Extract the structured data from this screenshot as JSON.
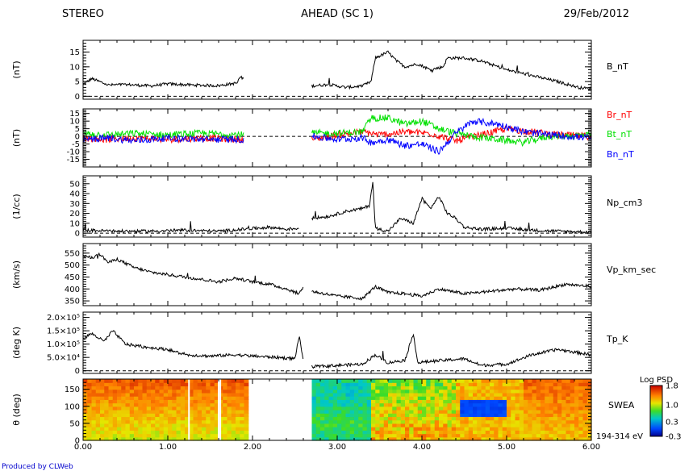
{
  "header": {
    "left": "STEREO",
    "center": "AHEAD (SC 1)",
    "right": "29/Feb/2012"
  },
  "footer": "Produced by CLWeb",
  "x_axis": {
    "range": [
      0,
      6
    ],
    "ticks": [
      "0.00",
      "1.00",
      "2.00",
      "3.00",
      "4.00",
      "5.00",
      "6.00"
    ]
  },
  "chart_data": [
    {
      "type": "line",
      "ylabel": "(nT)",
      "ylim": [
        -1,
        19
      ],
      "yticks": [
        0,
        5,
        10,
        15
      ],
      "ytick_labels": [
        "0",
        "5",
        "10",
        "15"
      ],
      "zero_line": true,
      "data_gap": [
        1.9,
        2.7
      ],
      "series": [
        {
          "name": "B_nT",
          "color": "#000000",
          "x": [
            0.0,
            0.1,
            0.3,
            0.5,
            0.8,
            1.0,
            1.3,
            1.6,
            1.82,
            1.85,
            1.9,
            2.7,
            2.9,
            3.1,
            3.3,
            3.4,
            3.45,
            3.6,
            3.7,
            3.8,
            3.95,
            4.1,
            4.25,
            4.3,
            4.5,
            4.7,
            5.0,
            5.3,
            5.6,
            5.85,
            6.0
          ],
          "y": [
            4,
            6,
            3.8,
            4,
            3.5,
            4.2,
            3.8,
            3.6,
            4.5,
            6.5,
            6,
            3.5,
            4,
            3,
            3.5,
            5,
            13,
            15,
            12,
            10,
            11,
            9,
            10,
            13,
            13,
            12,
            9,
            7,
            5,
            3,
            2.5
          ]
        }
      ],
      "label_colors": [
        "#000000"
      ]
    },
    {
      "type": "line",
      "ylabel": "(nT)",
      "ylim": [
        -20,
        18
      ],
      "yticks": [
        -15,
        -10,
        -5,
        0,
        5,
        10,
        15
      ],
      "ytick_labels": [
        "-15",
        "-10",
        "-5",
        "0",
        "5",
        "10",
        "15"
      ],
      "zero_line": true,
      "data_gap": [
        1.9,
        2.7
      ],
      "series": [
        {
          "name": "Br_nT",
          "color": "#ff0000",
          "x": [
            0.0,
            0.3,
            0.6,
            1.0,
            1.4,
            1.9,
            2.7,
            3.0,
            3.3,
            3.5,
            3.8,
            4.1,
            4.4,
            4.7,
            5.0,
            5.3,
            5.6,
            6.0
          ],
          "y": [
            -1,
            -2,
            -1,
            -2,
            -1,
            -2,
            -2,
            1,
            3,
            1,
            3,
            2,
            -3,
            1,
            5,
            3,
            1,
            0
          ]
        },
        {
          "name": "Bt_nT",
          "color": "#00e000",
          "x": [
            0.0,
            0.3,
            0.6,
            1.0,
            1.4,
            1.9,
            2.7,
            3.0,
            3.3,
            3.4,
            3.6,
            3.8,
            4.0,
            4.2,
            4.4,
            4.6,
            4.9,
            5.2,
            5.5,
            6.0
          ],
          "y": [
            2,
            1,
            2,
            1,
            2,
            1,
            2,
            2,
            3,
            12,
            12,
            8,
            10,
            5,
            2,
            0,
            -2,
            -4,
            0,
            1
          ]
        },
        {
          "name": "Bn_nT",
          "color": "#0000ff",
          "x": [
            0.0,
            0.3,
            0.6,
            1.0,
            1.4,
            1.9,
            2.7,
            3.0,
            3.3,
            3.4,
            3.6,
            3.8,
            4.0,
            4.2,
            4.4,
            4.6,
            4.9,
            5.2,
            5.5,
            6.0
          ],
          "y": [
            -2,
            -1,
            -3,
            -1,
            -2,
            -2,
            0,
            -2,
            -1,
            -4,
            -2,
            -6,
            -5,
            -10,
            2,
            10,
            8,
            3,
            1,
            -1
          ]
        }
      ],
      "label_colors": [
        "#ff0000",
        "#00e000",
        "#0000ff"
      ]
    },
    {
      "type": "line",
      "ylabel": "(1/cc)",
      "ylim": [
        -4,
        58
      ],
      "yticks": [
        0,
        10,
        20,
        30,
        40,
        50
      ],
      "ytick_labels": [
        "0",
        "10",
        "20",
        "30",
        "40",
        "50"
      ],
      "zero_line": true,
      "data_gap": [
        2.55,
        2.7
      ],
      "series": [
        {
          "name": "Np_cm3",
          "color": "#000000",
          "x": [
            0.0,
            0.4,
            0.8,
            1.2,
            1.6,
            1.9,
            2.2,
            2.4,
            2.55,
            2.7,
            2.9,
            3.1,
            3.3,
            3.38,
            3.42,
            3.45,
            3.6,
            3.75,
            3.9,
            4.0,
            4.1,
            4.2,
            4.3,
            4.4,
            4.5,
            4.7,
            5.0,
            5.3,
            5.6,
            6.0
          ],
          "y": [
            3,
            2,
            2,
            3,
            2,
            4,
            6,
            4,
            5,
            15,
            17,
            22,
            25,
            28,
            52,
            5,
            2,
            15,
            10,
            35,
            25,
            37,
            20,
            15,
            6,
            4,
            5,
            3,
            2,
            1
          ]
        }
      ],
      "label_colors": [
        "#000000"
      ]
    },
    {
      "type": "line",
      "ylabel": "(km/s)",
      "ylim": [
        330,
        590
      ],
      "yticks": [
        350,
        400,
        450,
        500,
        550
      ],
      "ytick_labels": [
        "350",
        "400",
        "450",
        "500",
        "550"
      ],
      "zero_line": false,
      "data_gap": [
        2.6,
        2.7
      ],
      "series": [
        {
          "name": "Vp_km_sec",
          "color": "#000000",
          "x": [
            0.0,
            0.1,
            0.2,
            0.3,
            0.4,
            0.6,
            0.8,
            1.0,
            1.2,
            1.4,
            1.6,
            1.8,
            2.0,
            2.2,
            2.4,
            2.55,
            2.6,
            2.7,
            3.0,
            3.3,
            3.45,
            3.6,
            3.8,
            4.0,
            4.2,
            4.5,
            4.8,
            5.1,
            5.4,
            5.7,
            6.0
          ],
          "y": [
            540,
            530,
            545,
            510,
            525,
            490,
            470,
            460,
            450,
            440,
            430,
            445,
            430,
            420,
            400,
            380,
            410,
            390,
            370,
            360,
            410,
            385,
            380,
            370,
            400,
            380,
            390,
            400,
            395,
            420,
            410
          ]
        }
      ],
      "label_colors": [
        "#000000"
      ]
    },
    {
      "type": "line",
      "ylabel": "(deg K)",
      "ylim": [
        -10000,
        220000
      ],
      "yticks": [
        0,
        50000,
        100000,
        150000,
        200000
      ],
      "ytick_labels": [
        "0",
        "5.0×10⁴",
        "1.0×10⁵",
        "1.5×10⁵",
        "2.0×10⁵"
      ],
      "zero_line": true,
      "data_gap": [
        2.6,
        2.7
      ],
      "series": [
        {
          "name": "Tp_K",
          "color": "#000000",
          "x": [
            0.0,
            0.1,
            0.25,
            0.35,
            0.5,
            0.7,
            1.0,
            1.2,
            1.5,
            1.8,
            2.0,
            2.3,
            2.5,
            2.55,
            2.6,
            2.7,
            3.0,
            3.3,
            3.45,
            3.6,
            3.8,
            3.9,
            3.95,
            4.1,
            4.3,
            4.5,
            4.7,
            5.0,
            5.3,
            5.6,
            5.8,
            6.0
          ],
          "y": [
            120000,
            140000,
            110000,
            150000,
            100000,
            90000,
            80000,
            60000,
            55000,
            60000,
            55000,
            50000,
            45000,
            130000,
            40000,
            15000,
            20000,
            25000,
            60000,
            30000,
            40000,
            140000,
            30000,
            35000,
            40000,
            45000,
            20000,
            25000,
            60000,
            80000,
            70000,
            60000
          ]
        }
      ],
      "label_colors": [
        "#000000"
      ]
    },
    {
      "type": "heatmap",
      "ylabel": "θ (deg)",
      "ylim": [
        0,
        180
      ],
      "yticks": [
        0,
        50,
        100,
        150
      ],
      "ytick_labels": [
        "0",
        "50",
        "100",
        "150"
      ],
      "data_gap": [
        1.95,
        2.7
      ],
      "series_name": "SWEA",
      "energy_label": "194-314 eV",
      "colorbar": {
        "title": "Log PSD",
        "min": -0.3,
        "max": 1.8,
        "tick_labels": [
          "1.8",
          "1.0",
          "0.3",
          "-0.3"
        ]
      }
    }
  ]
}
